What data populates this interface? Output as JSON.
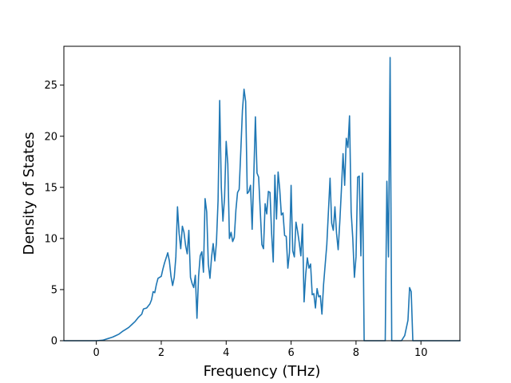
{
  "chart_data": {
    "type": "line",
    "title": "",
    "xlabel": "Frequency (THz)",
    "ylabel": "Density of States",
    "xlim": [
      -1.0,
      11.2
    ],
    "ylim": [
      0,
      28.8
    ],
    "xticks": [
      0,
      2,
      4,
      6,
      8,
      10
    ],
    "yticks": [
      0,
      5,
      10,
      15,
      20,
      25
    ],
    "grid": false,
    "legend": "none",
    "series": [
      {
        "color": "#1f77b4",
        "points": [
          [
            -1.0,
            0
          ],
          [
            -0.5,
            0
          ],
          [
            0.0,
            0
          ],
          [
            0.2,
            0.05
          ],
          [
            0.35,
            0.2
          ],
          [
            0.5,
            0.35
          ],
          [
            0.6,
            0.5
          ],
          [
            0.7,
            0.65
          ],
          [
            0.8,
            0.9
          ],
          [
            0.9,
            1.1
          ],
          [
            1.0,
            1.3
          ],
          [
            1.1,
            1.6
          ],
          [
            1.2,
            1.9
          ],
          [
            1.3,
            2.3
          ],
          [
            1.4,
            2.6
          ],
          [
            1.45,
            3.1
          ],
          [
            1.55,
            3.2
          ],
          [
            1.65,
            3.6
          ],
          [
            1.7,
            4.0
          ],
          [
            1.75,
            4.8
          ],
          [
            1.8,
            4.7
          ],
          [
            1.85,
            5.5
          ],
          [
            1.9,
            6.1
          ],
          [
            2.0,
            6.3
          ],
          [
            2.05,
            7.0
          ],
          [
            2.1,
            7.6
          ],
          [
            2.15,
            8.1
          ],
          [
            2.2,
            8.6
          ],
          [
            2.25,
            7.8
          ],
          [
            2.3,
            6.3
          ],
          [
            2.35,
            5.4
          ],
          [
            2.4,
            6.2
          ],
          [
            2.45,
            8.2
          ],
          [
            2.5,
            13.1
          ],
          [
            2.55,
            10.5
          ],
          [
            2.6,
            9.0
          ],
          [
            2.65,
            11.2
          ],
          [
            2.7,
            10.6
          ],
          [
            2.75,
            9.3
          ],
          [
            2.8,
            8.5
          ],
          [
            2.85,
            10.8
          ],
          [
            2.9,
            6.2
          ],
          [
            2.95,
            5.6
          ],
          [
            3.0,
            5.2
          ],
          [
            3.05,
            6.4
          ],
          [
            3.1,
            2.2
          ],
          [
            3.15,
            6.3
          ],
          [
            3.2,
            8.3
          ],
          [
            3.25,
            8.7
          ],
          [
            3.3,
            6.7
          ],
          [
            3.35,
            13.9
          ],
          [
            3.4,
            12.6
          ],
          [
            3.45,
            7.5
          ],
          [
            3.5,
            6.1
          ],
          [
            3.55,
            8.2
          ],
          [
            3.6,
            9.5
          ],
          [
            3.65,
            7.8
          ],
          [
            3.7,
            9.6
          ],
          [
            3.75,
            13.7
          ],
          [
            3.8,
            23.5
          ],
          [
            3.85,
            15.0
          ],
          [
            3.9,
            11.7
          ],
          [
            3.95,
            14.0
          ],
          [
            4.0,
            19.5
          ],
          [
            4.05,
            17.3
          ],
          [
            4.1,
            10.0
          ],
          [
            4.15,
            10.6
          ],
          [
            4.2,
            9.7
          ],
          [
            4.25,
            10.1
          ],
          [
            4.3,
            12.8
          ],
          [
            4.35,
            14.5
          ],
          [
            4.4,
            14.8
          ],
          [
            4.45,
            18.5
          ],
          [
            4.5,
            22.5
          ],
          [
            4.55,
            24.6
          ],
          [
            4.6,
            23.4
          ],
          [
            4.65,
            14.4
          ],
          [
            4.7,
            14.6
          ],
          [
            4.75,
            15.2
          ],
          [
            4.8,
            10.9
          ],
          [
            4.85,
            16.1
          ],
          [
            4.9,
            21.9
          ],
          [
            4.95,
            16.4
          ],
          [
            5.0,
            16.0
          ],
          [
            5.05,
            12.7
          ],
          [
            5.1,
            9.4
          ],
          [
            5.15,
            9.0
          ],
          [
            5.2,
            13.4
          ],
          [
            5.25,
            12.4
          ],
          [
            5.3,
            14.6
          ],
          [
            5.35,
            14.5
          ],
          [
            5.4,
            10.5
          ],
          [
            5.45,
            7.7
          ],
          [
            5.5,
            16.2
          ],
          [
            5.55,
            11.9
          ],
          [
            5.6,
            16.5
          ],
          [
            5.65,
            14.8
          ],
          [
            5.7,
            12.3
          ],
          [
            5.75,
            12.5
          ],
          [
            5.8,
            10.3
          ],
          [
            5.85,
            10.2
          ],
          [
            5.9,
            7.1
          ],
          [
            5.95,
            8.6
          ],
          [
            6.0,
            15.2
          ],
          [
            6.05,
            8.8
          ],
          [
            6.1,
            8.2
          ],
          [
            6.15,
            11.6
          ],
          [
            6.2,
            10.7
          ],
          [
            6.25,
            9.6
          ],
          [
            6.3,
            8.3
          ],
          [
            6.35,
            11.4
          ],
          [
            6.4,
            3.8
          ],
          [
            6.45,
            6.5
          ],
          [
            6.5,
            8.1
          ],
          [
            6.55,
            7.1
          ],
          [
            6.6,
            7.5
          ],
          [
            6.65,
            4.5
          ],
          [
            6.7,
            4.6
          ],
          [
            6.75,
            3.2
          ],
          [
            6.8,
            5.1
          ],
          [
            6.85,
            4.3
          ],
          [
            6.9,
            4.4
          ],
          [
            6.95,
            2.6
          ],
          [
            7.0,
            5.5
          ],
          [
            7.1,
            9.4
          ],
          [
            7.2,
            15.9
          ],
          [
            7.25,
            11.5
          ],
          [
            7.3,
            10.8
          ],
          [
            7.35,
            13.1
          ],
          [
            7.4,
            10.5
          ],
          [
            7.45,
            8.9
          ],
          [
            7.5,
            11.6
          ],
          [
            7.55,
            14.8
          ],
          [
            7.6,
            18.3
          ],
          [
            7.65,
            15.2
          ],
          [
            7.7,
            19.8
          ],
          [
            7.75,
            18.9
          ],
          [
            7.8,
            22.0
          ],
          [
            7.85,
            12.6
          ],
          [
            7.9,
            10.0
          ],
          [
            7.95,
            6.2
          ],
          [
            8.0,
            8.2
          ],
          [
            8.05,
            16.0
          ],
          [
            8.1,
            16.1
          ],
          [
            8.15,
            8.3
          ],
          [
            8.2,
            16.4
          ],
          [
            8.25,
            0
          ],
          [
            8.9,
            0
          ],
          [
            8.95,
            15.6
          ],
          [
            9.0,
            8.2
          ],
          [
            9.05,
            27.7
          ],
          [
            9.1,
            0
          ],
          [
            9.4,
            0
          ],
          [
            9.5,
            0.5
          ],
          [
            9.6,
            2.0
          ],
          [
            9.65,
            5.2
          ],
          [
            9.7,
            4.8
          ],
          [
            9.75,
            0
          ],
          [
            10.0,
            0
          ],
          [
            10.6,
            0
          ],
          [
            11.2,
            0
          ]
        ]
      }
    ]
  }
}
